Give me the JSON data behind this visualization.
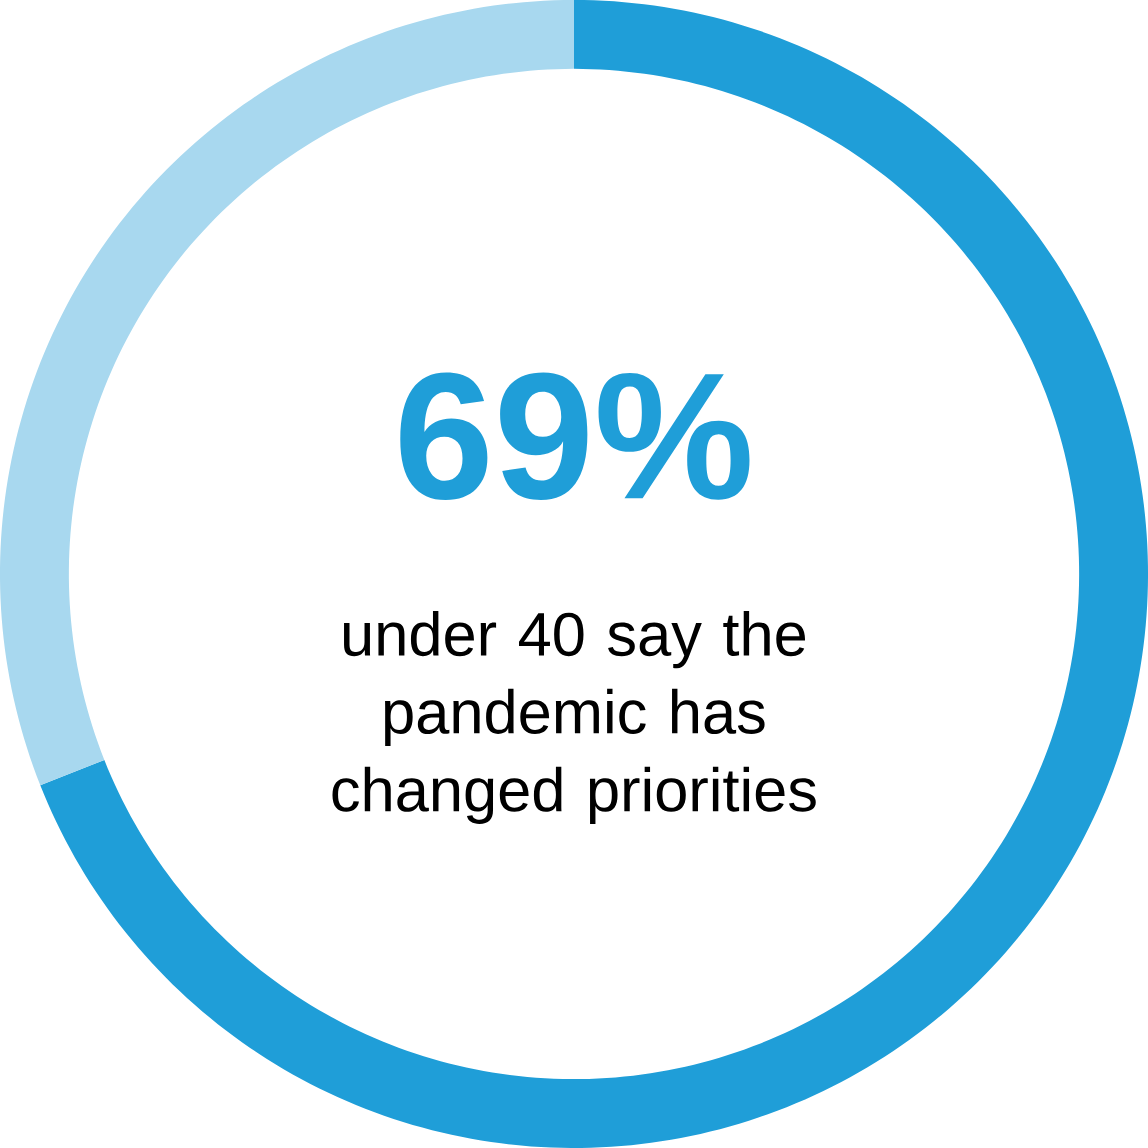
{
  "chart_data": {
    "type": "donut",
    "categories": [
      null,
      null
    ],
    "values": [
      69,
      31
    ],
    "colors": [
      "#1f9ed8",
      "#a8d8ef"
    ],
    "value_labels": [
      "69%",
      null
    ],
    "annotations": [
      "under 40 say the pandemic has changed priorities"
    ]
  }
}
